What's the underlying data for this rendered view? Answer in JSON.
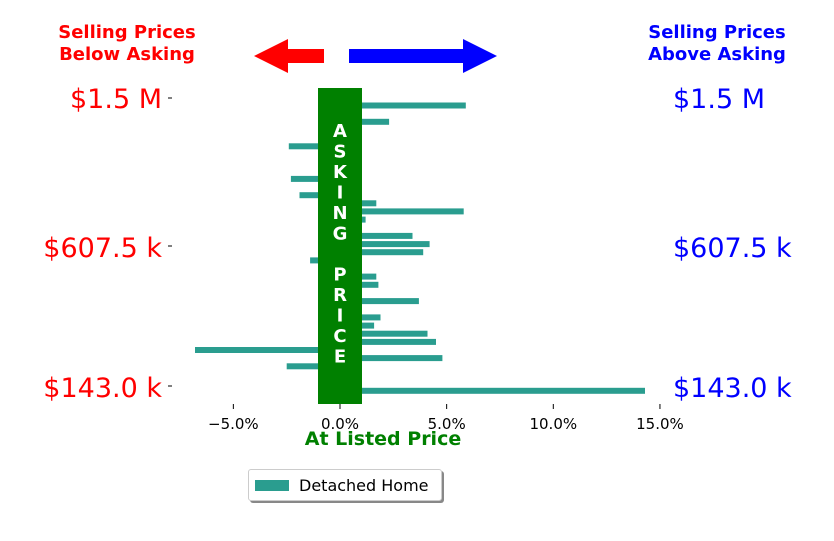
{
  "colors": {
    "bar": "#2a9d8f",
    "asking_band": "#008000",
    "below": "#ff0000",
    "above": "#0000ff",
    "listed_label": "#008000"
  },
  "header": {
    "left_line1": "Selling Prices",
    "left_line2": "Below Asking",
    "right_line1": "Selling Prices",
    "right_line2": "Above Asking",
    "left_arrow_icon": "left-arrow",
    "right_arrow_icon": "double-arrow"
  },
  "asking_band_text": "ASKING PRICE",
  "xlabel": "At Listed Price",
  "legend": {
    "label": "Detached Home"
  },
  "price_labels": {
    "left": [
      "$1.5 M",
      "$607.5 k",
      "$143.0 k"
    ],
    "right": [
      "$1.5 M",
      "$607.5 k",
      "$143.0 k"
    ]
  },
  "chart_data": {
    "type": "bar",
    "orientation": "horizontal",
    "xlabel": "At Listed Price",
    "x_unit": "%",
    "xlim": [
      -7.0,
      15.0
    ],
    "x_ticks": [
      -5.0,
      0.0,
      5.0,
      10.0,
      15.0
    ],
    "x_tick_labels": [
      "−5.0%",
      "0.0%",
      "5.0%",
      "10.0%",
      "15.0%"
    ],
    "y_tick_labels": [
      "$1.5 M",
      "$607.5 k",
      "$143.0 k"
    ],
    "series": [
      {
        "name": "Detached Home",
        "values_top_to_bottom": [
          5.9,
          1.0,
          2.3,
          1.0,
          1.0,
          -2.4,
          1.0,
          1.0,
          0.6,
          -2.3,
          1.0,
          -1.9,
          1.7,
          5.8,
          1.2,
          1.0,
          3.4,
          4.2,
          3.9,
          -1.4,
          1.0,
          1.7,
          1.8,
          1.0,
          3.7,
          1.0,
          1.9,
          1.6,
          4.1,
          4.5,
          -6.8,
          4.8,
          -2.5,
          1.0,
          1.0,
          14.3
        ]
      }
    ]
  }
}
